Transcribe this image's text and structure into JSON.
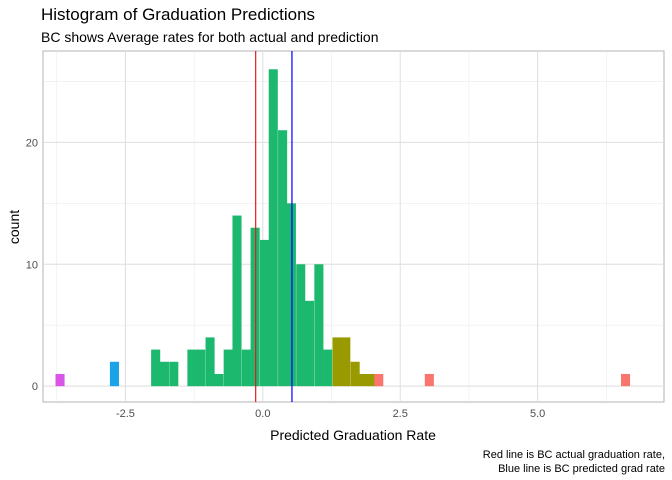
{
  "chart_data": {
    "type": "bar",
    "title": "Histogram of Graduation Predictions",
    "subtitle": "BC shows Average rates for both actual and prediction",
    "xlabel": "Predicted Graduation Rate",
    "ylabel": "count",
    "caption": [
      "Red line is BC actual graduation rate,",
      "Blue line is BC predicted grad rate"
    ],
    "xlim": [
      -4.0,
      7.3
    ],
    "ylim": [
      -1.3,
      27.5
    ],
    "x_ticks": [
      -2.5,
      0.0,
      2.5,
      5.0
    ],
    "x_tick_labels": [
      "-2.5",
      "0.0",
      "2.5",
      "5.0"
    ],
    "y_ticks": [
      0,
      10,
      20
    ],
    "y_tick_labels": [
      "0",
      "10",
      "20"
    ],
    "bin_width": 0.165,
    "grid": true,
    "vlines": [
      {
        "x": -0.13,
        "color": "#e41a1c"
      },
      {
        "x": 0.53,
        "color": "#0000ff"
      }
    ],
    "bins": [
      {
        "x": -3.69,
        "count": 1,
        "color": "#d955e6"
      },
      {
        "x": -2.7,
        "count": 2,
        "color": "#1aa3e8"
      },
      {
        "x": -1.95,
        "count": 3,
        "color": "#1cb86e"
      },
      {
        "x": -1.79,
        "count": 2,
        "color": "#1cb86e"
      },
      {
        "x": -1.62,
        "count": 2,
        "color": "#1cb86e"
      },
      {
        "x": -1.29,
        "count": 3,
        "color": "#1cb86e"
      },
      {
        "x": -1.13,
        "count": 3,
        "color": "#1cb86e"
      },
      {
        "x": -0.96,
        "count": 4,
        "color": "#1cb86e"
      },
      {
        "x": -0.8,
        "count": 1,
        "color": "#1cb86e"
      },
      {
        "x": -0.63,
        "count": 3,
        "color": "#1cb86e"
      },
      {
        "x": -0.47,
        "count": 14,
        "color": "#1cb86e"
      },
      {
        "x": -0.3,
        "count": 3,
        "color": "#1cb86e"
      },
      {
        "x": -0.14,
        "count": 13,
        "color": "#1cb86e"
      },
      {
        "x": 0.03,
        "count": 12,
        "color": "#1cb86e"
      },
      {
        "x": 0.19,
        "count": 26,
        "color": "#1cb86e"
      },
      {
        "x": 0.36,
        "count": 21,
        "color": "#1cb86e"
      },
      {
        "x": 0.52,
        "count": 15,
        "color": "#1cb86e"
      },
      {
        "x": 0.69,
        "count": 10,
        "color": "#1cb86e"
      },
      {
        "x": 0.85,
        "count": 7,
        "color": "#1cb86e"
      },
      {
        "x": 1.02,
        "count": 10,
        "color": "#1cb86e"
      },
      {
        "x": 1.18,
        "count": 3,
        "color": "#1cb86e"
      },
      {
        "x": 1.35,
        "count": 4,
        "color": "#999900"
      },
      {
        "x": 1.51,
        "count": 4,
        "color": "#999900"
      },
      {
        "x": 1.68,
        "count": 2,
        "color": "#999900"
      },
      {
        "x": 1.84,
        "count": 1,
        "color": "#999900"
      },
      {
        "x": 2.0,
        "count": 1,
        "color": "#999900"
      },
      {
        "x": 2.11,
        "count": 1,
        "color": "#f8766d"
      },
      {
        "x": 3.03,
        "count": 1,
        "color": "#f8766d"
      },
      {
        "x": 6.6,
        "count": 1,
        "color": "#f8766d"
      }
    ]
  }
}
